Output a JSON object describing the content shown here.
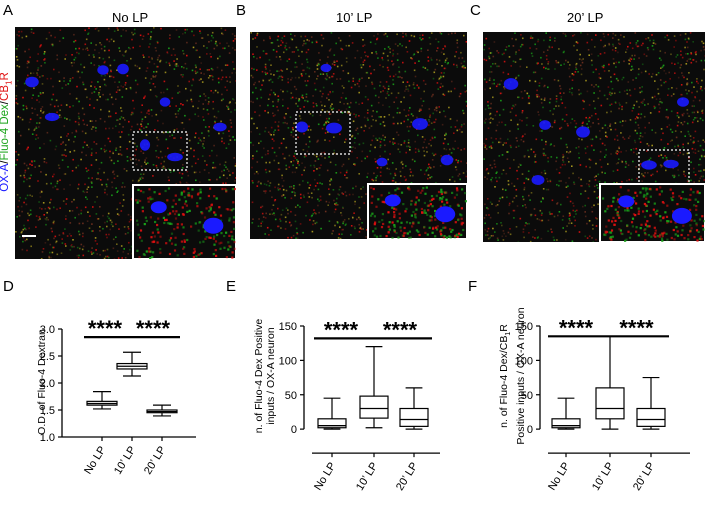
{
  "panels": {
    "A": {
      "letter": "A",
      "title": "No LP"
    },
    "B": {
      "letter": "B",
      "title": "10’ LP"
    },
    "C": {
      "letter": "C",
      "title": "20’ LP"
    },
    "D": {
      "letter": "D"
    },
    "E": {
      "letter": "E"
    },
    "F": {
      "letter": "F"
    }
  },
  "stain_label": {
    "oxa": "OX-A",
    "sep1": "/",
    "fluo": "Fluo-4 Dex",
    "sep2": "/",
    "cb1": "CB",
    "cb1_sub": "1",
    "cb1_r": "R"
  },
  "colors": {
    "blue": "#1a1aff",
    "green": "#1aa31a",
    "red": "#e01010",
    "background": "#0b0b0b"
  },
  "chart_data": [
    {
      "type": "box",
      "panel": "D",
      "ylabel": "O.D. of Fluo-4 Dextran",
      "categories": [
        "No LP",
        "10’ LP",
        "20’ LP"
      ],
      "ylim": [
        1.0,
        3.0
      ],
      "yticks": [
        "1.0",
        "1.5",
        "2.0",
        "2.5",
        "3.0"
      ],
      "ytick_values": [
        1.0,
        1.5,
        2.0,
        2.5,
        3.0
      ],
      "boxes": [
        {
          "min": 1.52,
          "q1": 1.59,
          "median": 1.62,
          "q3": 1.66,
          "max": 1.84
        },
        {
          "min": 2.13,
          "q1": 2.26,
          "median": 2.31,
          "q3": 2.36,
          "max": 2.57
        },
        {
          "min": 1.39,
          "q1": 1.45,
          "median": 1.47,
          "q3": 1.5,
          "max": 1.59
        }
      ],
      "significance": [
        {
          "from": 0,
          "to": 1,
          "label": "****",
          "y": 2.85
        },
        {
          "from": 1,
          "to": 2,
          "label": "****",
          "y": 2.85
        }
      ]
    },
    {
      "type": "box",
      "panel": "E",
      "ylabel_line1": "n. of Fluo-4 Dex Positive",
      "ylabel_line2": "inputs / OX-A neuron",
      "categories": [
        "No LP",
        "10’ LP",
        "20’ LP"
      ],
      "ylim": [
        -10,
        150
      ],
      "yticks": [
        "0",
        "50",
        "100",
        "150"
      ],
      "ytick_values": [
        0,
        50,
        100,
        150
      ],
      "boxes": [
        {
          "min": 0,
          "q1": 2,
          "median": 5,
          "q3": 15,
          "max": 45
        },
        {
          "min": 2,
          "q1": 16,
          "median": 30,
          "q3": 48,
          "max": 120
        },
        {
          "min": 0,
          "q1": 4,
          "median": 14,
          "q3": 30,
          "max": 60
        }
      ],
      "significance": [
        {
          "from": 0,
          "to": 1,
          "label": "****",
          "y": 132
        },
        {
          "from": 1,
          "to": 2,
          "label": "****",
          "y": 132
        }
      ]
    },
    {
      "type": "box",
      "panel": "F",
      "ylabel_line1": "n. of Fluo-4 Dex/CB",
      "ylabel_line1_sub": "1",
      "ylabel_line1_end": "R",
      "ylabel_line2": "Positive inputs / OX-A neuron",
      "categories": [
        "No LP",
        "10’ LP",
        "20’ LP"
      ],
      "ylim": [
        -10,
        150
      ],
      "yticks": [
        "0",
        "50",
        "100",
        "150"
      ],
      "ytick_values": [
        0,
        50,
        100,
        150
      ],
      "boxes": [
        {
          "min": 0,
          "q1": 2,
          "median": 5,
          "q3": 15,
          "max": 45
        },
        {
          "min": 0,
          "q1": 15,
          "median": 30,
          "q3": 60,
          "max": 135
        },
        {
          "min": 0,
          "q1": 4,
          "median": 14,
          "q3": 30,
          "max": 75
        }
      ],
      "significance": [
        {
          "from": 0,
          "to": 1,
          "label": "****",
          "y": 135
        },
        {
          "from": 1,
          "to": 2,
          "label": "****",
          "y": 135
        }
      ]
    }
  ]
}
